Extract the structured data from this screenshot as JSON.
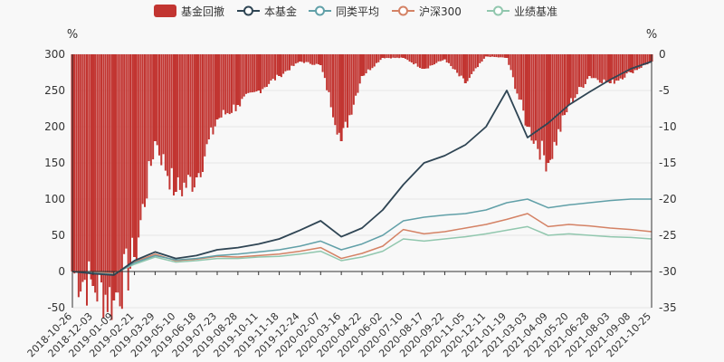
{
  "chart_data": {
    "type": "line",
    "legend": {
      "placement": "top-center",
      "items": [
        {
          "name": "基金回撤",
          "marker": "bar",
          "color": "#c23531"
        },
        {
          "name": "本基金",
          "marker": "line",
          "color": "#2f4554"
        },
        {
          "name": "同类平均",
          "marker": "line",
          "color": "#61a0a8"
        },
        {
          "name": "沪深300",
          "marker": "line",
          "color": "#d48265"
        },
        {
          "name": "业绩基准",
          "marker": "line",
          "color": "#91c7ae"
        }
      ]
    },
    "left_axis": {
      "unit": "%",
      "ylim": [
        -50,
        300
      ],
      "ticks": [
        -50,
        0,
        50,
        100,
        150,
        200,
        250,
        300
      ]
    },
    "right_axis": {
      "unit": "%",
      "ylim": [
        -35,
        0
      ],
      "ticks": [
        -35,
        -30,
        -25,
        -20,
        -15,
        -10,
        -5,
        0
      ]
    },
    "x_tick_labels": [
      "2018-10-26",
      "2018-12-03",
      "2019-01-09",
      "2019-02-21",
      "2019-03-29",
      "2019-05-10",
      "2019-06-18",
      "2019-07-23",
      "2019-08-28",
      "2019-10-11",
      "2019-11-18",
      "2019-12-24",
      "2020-02-07",
      "2020-03-16",
      "2020-04-22",
      "2020-06-02",
      "2020-07-10",
      "2020-08-17",
      "2020-09-22",
      "2020-11-05",
      "2020-12-11",
      "2021-01-19",
      "2021-03-03",
      "2021-04-09",
      "2021-05-20",
      "2021-06-28",
      "2021-08-03",
      "2021-09-08",
      "2021-10-25"
    ],
    "series": [
      {
        "name": "本基金",
        "axis": "left",
        "color": "#2f4554",
        "x": [
          0,
          1,
          2,
          3,
          4,
          5,
          6,
          7,
          8,
          9,
          10,
          11,
          12,
          13,
          14,
          15,
          16,
          17,
          18,
          19,
          20,
          21,
          22,
          23,
          24,
          25,
          26,
          27,
          28
        ],
        "values": [
          0,
          -3,
          -5,
          15,
          27,
          18,
          22,
          30,
          33,
          38,
          45,
          57,
          70,
          48,
          60,
          85,
          120,
          150,
          160,
          175,
          200,
          250,
          185,
          205,
          230,
          248,
          265,
          280,
          290
        ]
      },
      {
        "name": "同类平均",
        "axis": "left",
        "color": "#61a0a8",
        "x": [
          0,
          1,
          2,
          3,
          4,
          5,
          6,
          7,
          8,
          9,
          10,
          11,
          12,
          13,
          14,
          15,
          16,
          17,
          18,
          19,
          20,
          21,
          22,
          23,
          24,
          25,
          26,
          27,
          28
        ],
        "values": [
          0,
          -2,
          -4,
          12,
          22,
          16,
          18,
          22,
          24,
          27,
          30,
          35,
          42,
          30,
          38,
          50,
          70,
          75,
          78,
          80,
          85,
          95,
          100,
          88,
          92,
          95,
          98,
          100,
          100
        ]
      },
      {
        "name": "沪深300",
        "axis": "left",
        "color": "#d48265",
        "x": [
          0,
          1,
          2,
          3,
          4,
          5,
          6,
          7,
          8,
          9,
          10,
          11,
          12,
          13,
          14,
          15,
          16,
          17,
          18,
          19,
          20,
          21,
          22,
          23,
          24,
          25,
          26,
          27,
          28
        ],
        "values": [
          0,
          -1,
          -3,
          13,
          24,
          15,
          17,
          21,
          20,
          22,
          24,
          28,
          33,
          18,
          25,
          35,
          58,
          52,
          55,
          60,
          65,
          72,
          80,
          62,
          65,
          63,
          60,
          58,
          55
        ]
      },
      {
        "name": "业绩基准",
        "axis": "left",
        "color": "#91c7ae",
        "x": [
          0,
          1,
          2,
          3,
          4,
          5,
          6,
          7,
          8,
          9,
          10,
          11,
          12,
          13,
          14,
          15,
          16,
          17,
          18,
          19,
          20,
          21,
          22,
          23,
          24,
          25,
          26,
          27,
          28
        ],
        "values": [
          0,
          -1,
          -3,
          10,
          20,
          13,
          15,
          18,
          18,
          20,
          21,
          24,
          28,
          15,
          20,
          28,
          45,
          42,
          45,
          48,
          52,
          57,
          62,
          50,
          52,
          50,
          48,
          47,
          45
        ]
      },
      {
        "name": "基金回撤",
        "axis": "right",
        "type": "bar",
        "color": "#c23531",
        "x": [
          0,
          1,
          2,
          3,
          4,
          5,
          6,
          7,
          8,
          9,
          10,
          11,
          12,
          13,
          14,
          15,
          16,
          17,
          18,
          19,
          20,
          21,
          22,
          23,
          24,
          25,
          26,
          27,
          28
        ],
        "values": [
          -30,
          -32,
          -34,
          -28,
          -12,
          -19,
          -17,
          -9,
          -7,
          -5,
          -3,
          -1,
          -1.5,
          -12,
          -3,
          -0.5,
          -0.5,
          -2,
          -0.7,
          -4,
          -0.3,
          -0.5,
          -10,
          -15,
          -7,
          -3,
          -4,
          -2.5,
          -1
        ]
      }
    ]
  }
}
